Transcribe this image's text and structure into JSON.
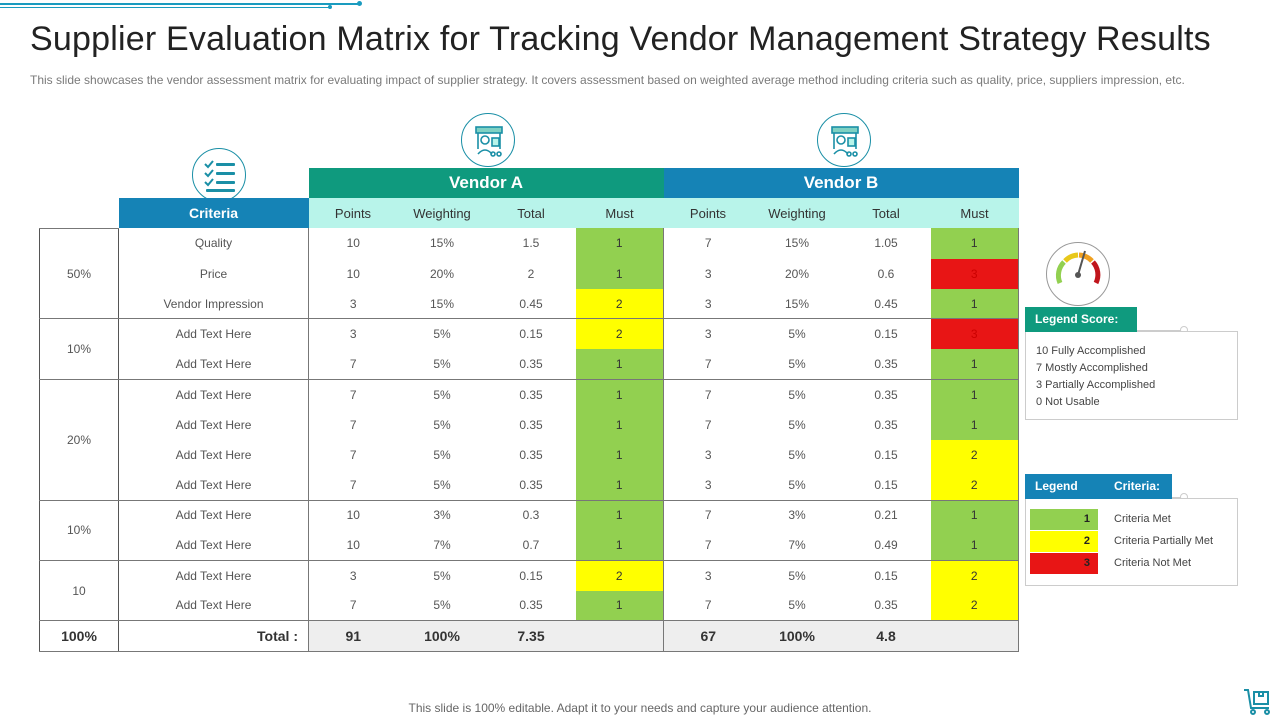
{
  "title": "Supplier Evaluation Matrix for Tracking Vendor Management Strategy Results",
  "subtitle": "This slide showcases the vendor assessment matrix for evaluating impact of supplier strategy. It covers assessment based on weighted average method including criteria such as quality, price, suppliers impression, etc.",
  "icons": {
    "checklist": "checklist-icon",
    "vendor_a": "vendor-shop-icon",
    "vendor_b": "vendor-shop-icon",
    "gauge": "gauge-icon",
    "cart": "cart-icon"
  },
  "colors": {
    "vendor_a": "#0f9a7e",
    "vendor_b": "#1583b6",
    "subheader": "#b8f4ea",
    "met": "#92d050",
    "partial": "#ffff00",
    "not_met": "#e81515"
  },
  "table": {
    "vendor_a_label": "Vendor A",
    "vendor_b_label": "Vendor B",
    "criteria_label": "Criteria",
    "columns": [
      "Points",
      "Weighting",
      "Total",
      "Must"
    ],
    "groups": [
      {
        "weight": "50%",
        "rows": [
          {
            "criteria": "Quality",
            "a": [
              "10",
              "15%",
              "1.5",
              "1"
            ],
            "b": [
              "7",
              "15%",
              "1.05",
              "1"
            ]
          },
          {
            "criteria": "Price",
            "a": [
              "10",
              "20%",
              "2",
              "1"
            ],
            "b": [
              "3",
              "20%",
              "0.6",
              "3"
            ]
          },
          {
            "criteria": "Vendor Impression",
            "a": [
              "3",
              "15%",
              "0.45",
              "2"
            ],
            "b": [
              "3",
              "15%",
              "0.45",
              "1"
            ]
          }
        ]
      },
      {
        "weight": "10%",
        "rows": [
          {
            "criteria": "Add Text Here",
            "a": [
              "3",
              "5%",
              "0.15",
              "2"
            ],
            "b": [
              "3",
              "5%",
              "0.15",
              "3"
            ]
          },
          {
            "criteria": "Add Text Here",
            "a": [
              "7",
              "5%",
              "0.35",
              "1"
            ],
            "b": [
              "7",
              "5%",
              "0.35",
              "1"
            ]
          }
        ]
      },
      {
        "weight": "20%",
        "rows": [
          {
            "criteria": "Add Text Here",
            "a": [
              "7",
              "5%",
              "0.35",
              "1"
            ],
            "b": [
              "7",
              "5%",
              "0.35",
              "1"
            ]
          },
          {
            "criteria": "Add Text Here",
            "a": [
              "7",
              "5%",
              "0.35",
              "1"
            ],
            "b": [
              "7",
              "5%",
              "0.35",
              "1"
            ]
          },
          {
            "criteria": "Add Text Here",
            "a": [
              "7",
              "5%",
              "0.35",
              "1"
            ],
            "b": [
              "3",
              "5%",
              "0.15",
              "2"
            ]
          },
          {
            "criteria": "Add Text Here",
            "a": [
              "7",
              "5%",
              "0.35",
              "1"
            ],
            "b": [
              "3",
              "5%",
              "0.15",
              "2"
            ]
          }
        ]
      },
      {
        "weight": "10%",
        "rows": [
          {
            "criteria": "Add Text Here",
            "a": [
              "10",
              "3%",
              "0.3",
              "1"
            ],
            "b": [
              "7",
              "3%",
              "0.21",
              "1"
            ]
          },
          {
            "criteria": "Add Text Here",
            "a": [
              "10",
              "7%",
              "0.7",
              "1"
            ],
            "b": [
              "7",
              "7%",
              "0.49",
              "1"
            ]
          }
        ]
      },
      {
        "weight": "10",
        "rows": [
          {
            "criteria": "Add Text Here",
            "a": [
              "3",
              "5%",
              "0.15",
              "2"
            ],
            "b": [
              "3",
              "5%",
              "0.15",
              "2"
            ]
          },
          {
            "criteria": "Add Text Here",
            "a": [
              "7",
              "5%",
              "0.35",
              "1"
            ],
            "b": [
              "7",
              "5%",
              "0.35",
              "2"
            ]
          }
        ]
      }
    ],
    "total": {
      "weight": "100%",
      "label": "Total :",
      "a": [
        "91",
        "100%",
        "7.35"
      ],
      "b": [
        "67",
        "100%",
        "4.8"
      ]
    }
  },
  "legend_score": {
    "title": "Legend Score:",
    "items": [
      "10 Fully Accomplished",
      "7 Mostly Accomplished",
      "3 Partially Accomplished",
      "0 Not Usable"
    ]
  },
  "legend_criteria": {
    "title_left": "Legend",
    "title_right": "Criteria:",
    "items": [
      {
        "value": "1",
        "label": "Criteria Met"
      },
      {
        "value": "2",
        "label": "Criteria Partially Met"
      },
      {
        "value": "3",
        "label": "Criteria Not Met"
      }
    ]
  },
  "footer": "This slide is 100% editable. Adapt it to your  needs and capture your audience attention."
}
